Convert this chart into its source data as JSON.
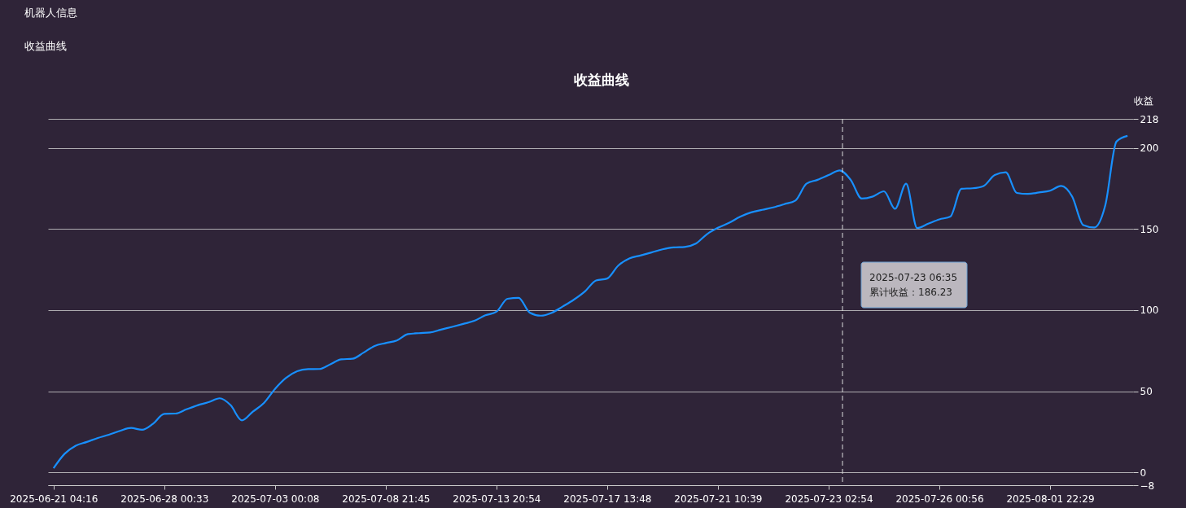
{
  "chart_data": {
    "type": "line",
    "title": "收益曲线",
    "ylabel": "收益",
    "categories": [
      "2025-06-21 04:16",
      null,
      null,
      null,
      null,
      null,
      null,
      null,
      null,
      null,
      "2025-06-28 00:33",
      null,
      null,
      null,
      null,
      null,
      null,
      null,
      null,
      null,
      "2025-07-03 00:08",
      null,
      null,
      null,
      null,
      null,
      null,
      null,
      null,
      null,
      "2025-07-08 21:45",
      null,
      null,
      null,
      null,
      null,
      null,
      null,
      null,
      null,
      "2025-07-13 20:54",
      null,
      null,
      null,
      null,
      null,
      null,
      null,
      null,
      null,
      "2025-07-17 13:48",
      null,
      null,
      null,
      null,
      null,
      null,
      null,
      null,
      null,
      "2025-07-21 10:39",
      null,
      null,
      null,
      null,
      null,
      null,
      null,
      null,
      null,
      "2025-07-23 02:54",
      null,
      null,
      null,
      null,
      null,
      null,
      null,
      null,
      null,
      "2025-07-26 00:56",
      null,
      null,
      null,
      null,
      null,
      null,
      null,
      null,
      null,
      "2025-08-01 22:29",
      null,
      null,
      null,
      null,
      null,
      null,
      null
    ],
    "series": [
      {
        "color": "#1890ff",
        "values": [
          2.5,
          11.4,
          16.4,
          18.7,
          21.1,
          23.1,
          25.5,
          27.3,
          26.2,
          30,
          36,
          36.2,
          38.8,
          41.3,
          43.2,
          45.6,
          41.3,
          32,
          37.4,
          42.7,
          51.4,
          58.2,
          62.3,
          63.6,
          63.7,
          66.6,
          69.7,
          70,
          73.8,
          77.9,
          79.7,
          81.3,
          85.2,
          85.8,
          86.2,
          88,
          89.7,
          91.5,
          93.4,
          96.8,
          99,
          107,
          107.6,
          98.5,
          96.6,
          98.4,
          102.3,
          106.5,
          111.6,
          118.3,
          119.5,
          127.5,
          131.9,
          133.7,
          135.6,
          137.5,
          138.7,
          139,
          141,
          146.8,
          150.8,
          153.8,
          157.6,
          160.3,
          161.9,
          163.4,
          165.4,
          167.6,
          178,
          180.4,
          183.3,
          186.2,
          180.3,
          168.8,
          170.1,
          173.3,
          162.5,
          178,
          150.6,
          153.3,
          156,
          157.7,
          174.9,
          175.2,
          176.6,
          183.3,
          185,
          172.3,
          171.7,
          172.6,
          173.7,
          176.6,
          170,
          152.5,
          151,
          165,
          204,
          207.5
        ]
      }
    ],
    "ylim": [
      -8,
      218
    ],
    "yticks": [
      -8,
      0,
      50,
      100,
      150,
      200,
      218
    ],
    "grid": "y",
    "annotations": [
      "机器人信息",
      "收益曲线",
      "2025-07-23 06:35",
      "累计收益：186.23"
    ]
  }
}
